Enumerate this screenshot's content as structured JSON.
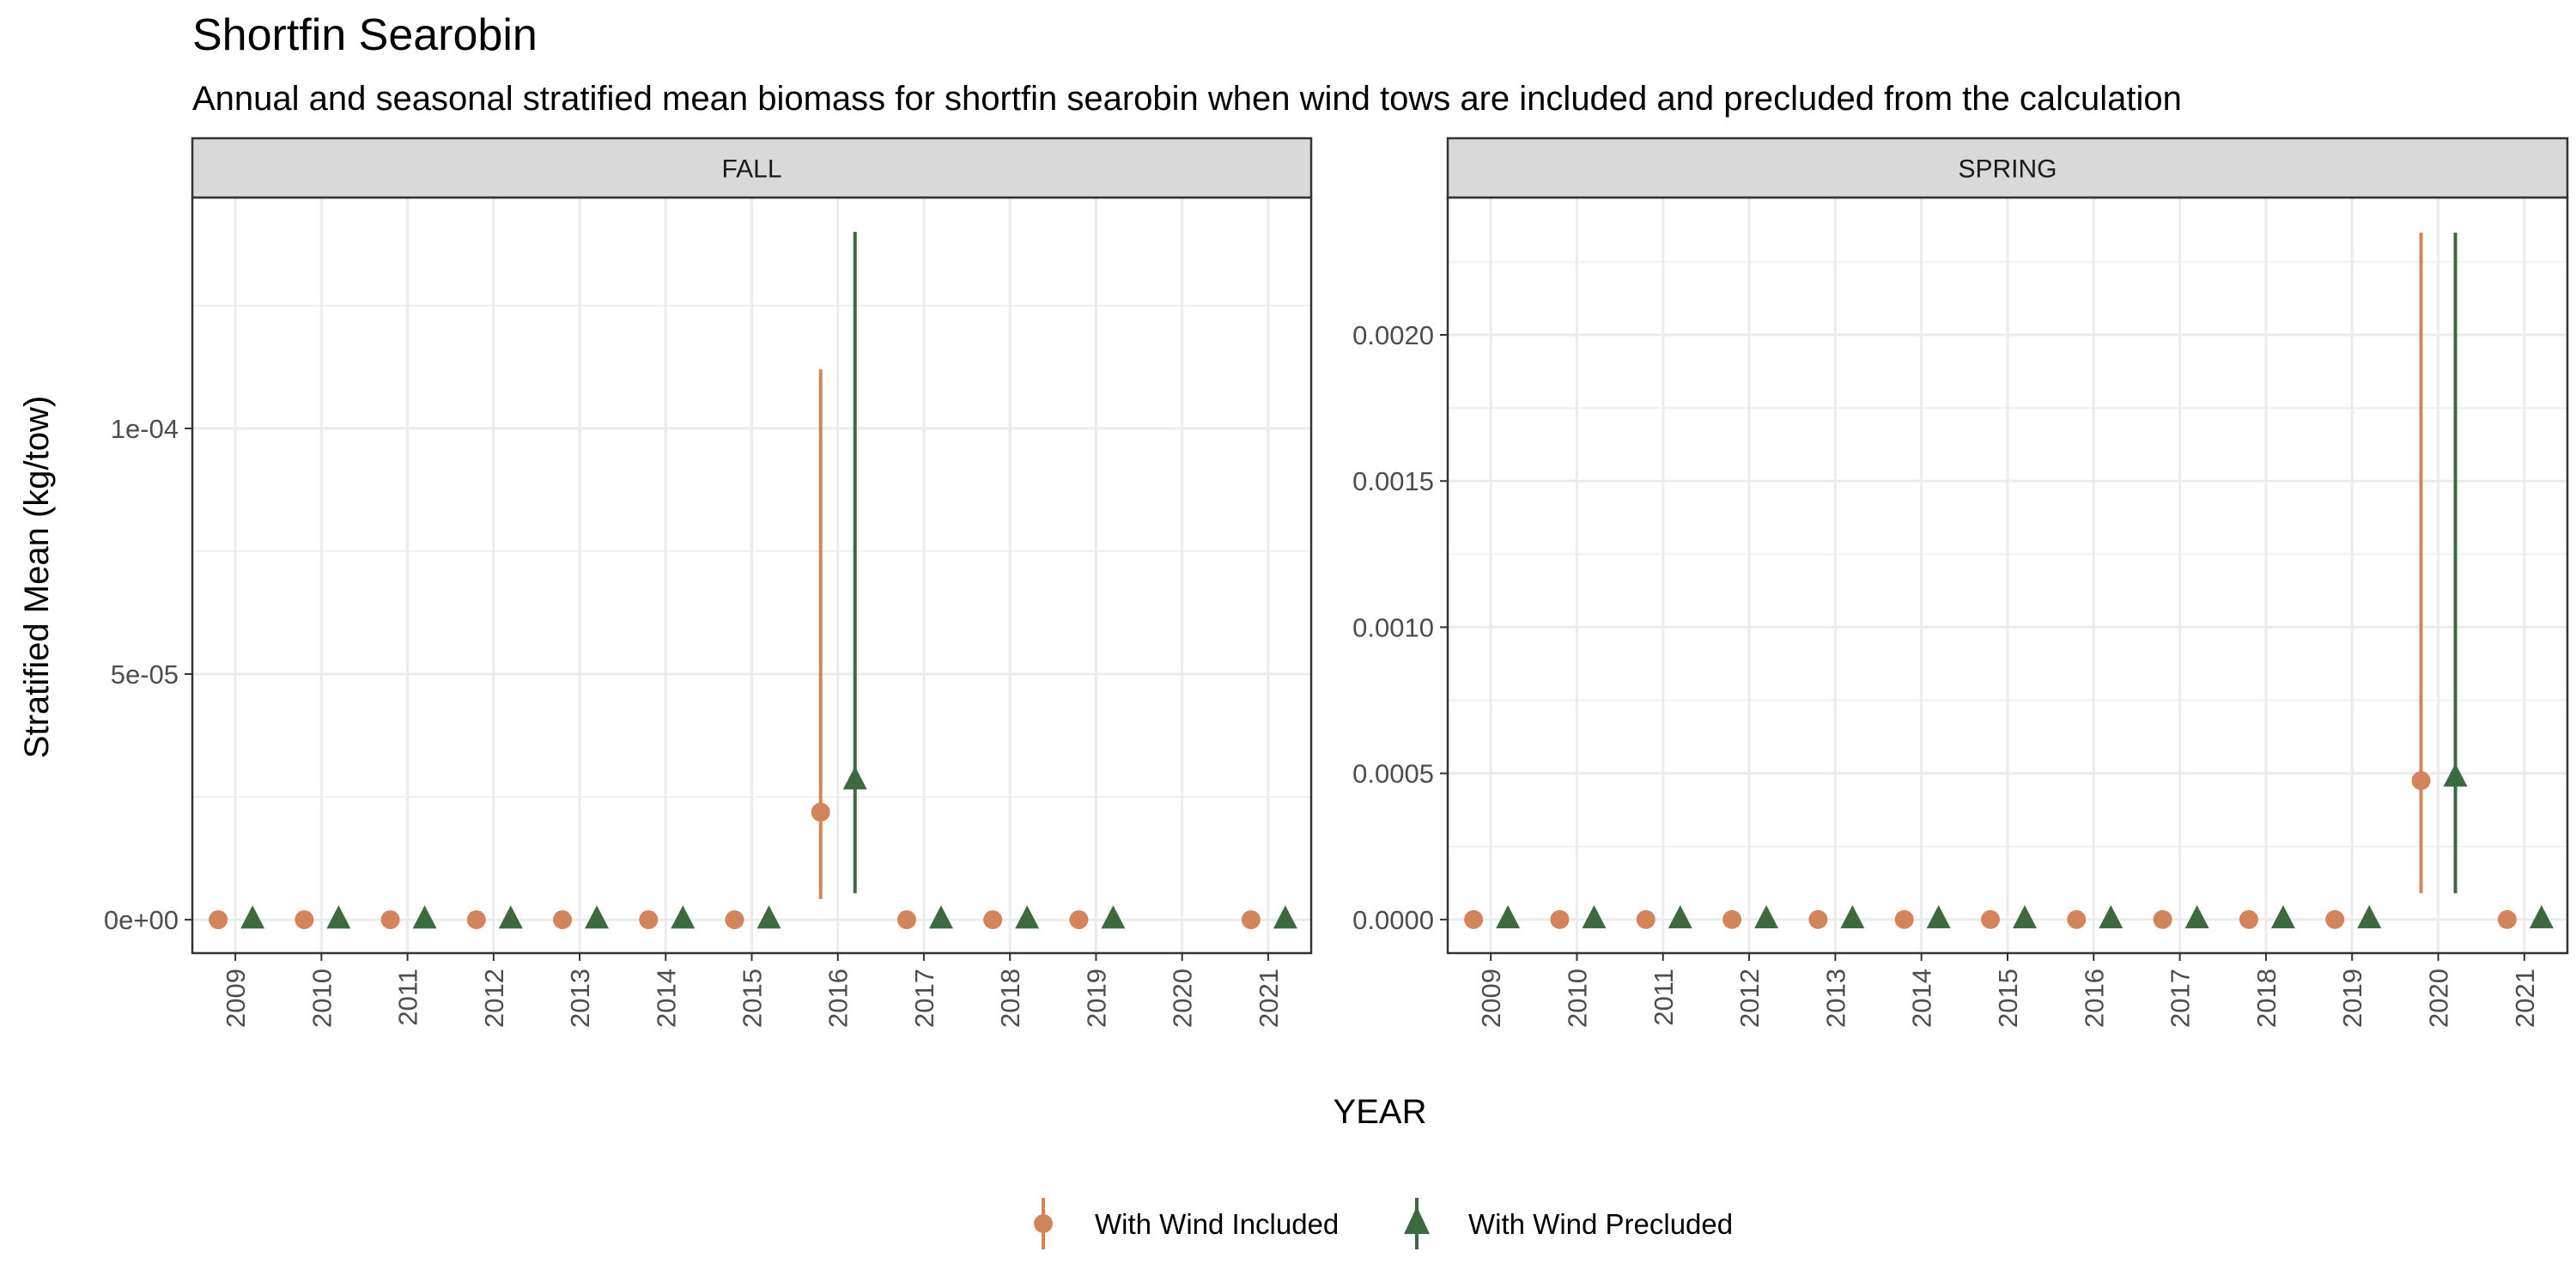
{
  "chart_data": {
    "type": "scatter",
    "title": "Shortfin Searobin",
    "subtitle": "Annual and seasonal stratified mean biomass for shortfin searobin when wind tows are included and precluded from the calculation",
    "xlabel": "YEAR",
    "ylabel": "Stratified Mean (kg/tow)",
    "grid": true,
    "legend_position": "bottom",
    "x_categories": [
      "2009",
      "2010",
      "2011",
      "2012",
      "2013",
      "2014",
      "2015",
      "2016",
      "2017",
      "2018",
      "2019",
      "2020",
      "2021"
    ],
    "series_styles": [
      {
        "name": "With Wind Included",
        "color": "#d4845a",
        "shape": "circle"
      },
      {
        "name": "With Wind Precluded",
        "color": "#3b6a3e",
        "shape": "triangle"
      }
    ],
    "panels": [
      {
        "name": "FALL",
        "ylim": [
          -6.8e-06,
          0.000147
        ],
        "yticks": [
          {
            "value": 0,
            "label": "0e+00"
          },
          {
            "value": 5e-05,
            "label": "5e-05"
          },
          {
            "value": 0.0001,
            "label": "1e-04"
          }
        ],
        "series": [
          {
            "name": "With Wind Included",
            "points": [
              {
                "year": "2009",
                "y": 0
              },
              {
                "year": "2010",
                "y": 0
              },
              {
                "year": "2011",
                "y": 0
              },
              {
                "year": "2012",
                "y": 0
              },
              {
                "year": "2013",
                "y": 0
              },
              {
                "year": "2014",
                "y": 0
              },
              {
                "year": "2015",
                "y": 0
              },
              {
                "year": "2016",
                "y": 2.19e-05,
                "ymin": 4.2e-06,
                "ymax": 0.000112
              },
              {
                "year": "2017",
                "y": 0
              },
              {
                "year": "2018",
                "y": 0
              },
              {
                "year": "2019",
                "y": 0
              },
              {
                "year": "2021",
                "y": 0
              }
            ]
          },
          {
            "name": "With Wind Precluded",
            "points": [
              {
                "year": "2009",
                "y": 0
              },
              {
                "year": "2010",
                "y": 0
              },
              {
                "year": "2011",
                "y": 0
              },
              {
                "year": "2012",
                "y": 0
              },
              {
                "year": "2013",
                "y": 0
              },
              {
                "year": "2014",
                "y": 0
              },
              {
                "year": "2015",
                "y": 0
              },
              {
                "year": "2016",
                "y": 2.83e-05,
                "ymin": 5.4e-06,
                "ymax": 0.00014
              },
              {
                "year": "2017",
                "y": 0
              },
              {
                "year": "2018",
                "y": 0
              },
              {
                "year": "2019",
                "y": 0
              },
              {
                "year": "2021",
                "y": 0
              }
            ]
          }
        ]
      },
      {
        "name": "SPRING",
        "ylim": [
          -0.000115,
          0.00247
        ],
        "yticks": [
          {
            "value": 0,
            "label": "0.0000"
          },
          {
            "value": 0.0005,
            "label": "0.0005"
          },
          {
            "value": 0.001,
            "label": "0.0010"
          },
          {
            "value": 0.0015,
            "label": "0.0015"
          },
          {
            "value": 0.002,
            "label": "0.0020"
          }
        ],
        "series": [
          {
            "name": "With Wind Included",
            "points": [
              {
                "year": "2009",
                "y": 0
              },
              {
                "year": "2010",
                "y": 0
              },
              {
                "year": "2011",
                "y": 0
              },
              {
                "year": "2012",
                "y": 0
              },
              {
                "year": "2013",
                "y": 0
              },
              {
                "year": "2014",
                "y": 0
              },
              {
                "year": "2015",
                "y": 0
              },
              {
                "year": "2016",
                "y": 0
              },
              {
                "year": "2017",
                "y": 0
              },
              {
                "year": "2018",
                "y": 0
              },
              {
                "year": "2019",
                "y": 0
              },
              {
                "year": "2020",
                "y": 0.000475,
                "ymin": 9e-05,
                "ymax": 0.00235
              },
              {
                "year": "2021",
                "y": 0
              }
            ]
          },
          {
            "name": "With Wind Precluded",
            "points": [
              {
                "year": "2009",
                "y": 0
              },
              {
                "year": "2010",
                "y": 0
              },
              {
                "year": "2011",
                "y": 0
              },
              {
                "year": "2012",
                "y": 0
              },
              {
                "year": "2013",
                "y": 0
              },
              {
                "year": "2014",
                "y": 0
              },
              {
                "year": "2015",
                "y": 0
              },
              {
                "year": "2016",
                "y": 0
              },
              {
                "year": "2017",
                "y": 0
              },
              {
                "year": "2018",
                "y": 0
              },
              {
                "year": "2019",
                "y": 0
              },
              {
                "year": "2020",
                "y": 0.000485,
                "ymin": 9e-05,
                "ymax": 0.00235
              },
              {
                "year": "2021",
                "y": 0
              }
            ]
          }
        ]
      }
    ]
  }
}
